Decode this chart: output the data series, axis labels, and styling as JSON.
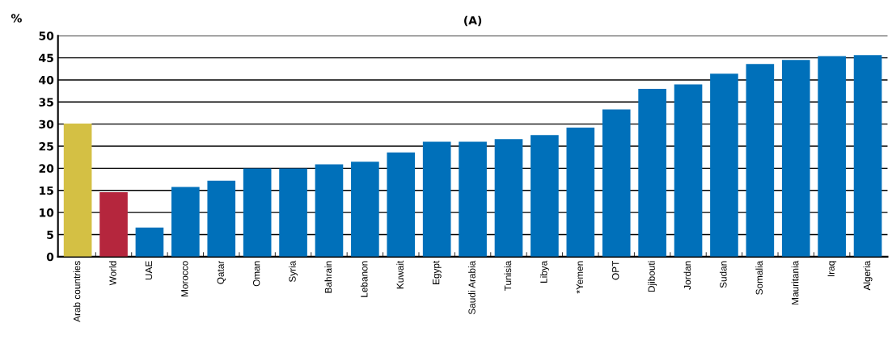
{
  "chart_data": {
    "type": "bar",
    "title": "(A)",
    "ylabel": "%",
    "categories": [
      "Arab countries",
      "World",
      "UAE",
      "Morocco",
      "Qatar",
      "Oman",
      "Syria",
      "Bahrain",
      "Lebanon",
      "Kuwait",
      "Egypt",
      "Saudi Arabia",
      "Tunisia",
      "Libya",
      "*Yemen",
      "OPT",
      "Djibouti",
      "Jordan",
      "Sudan",
      "Somalia",
      "Mauritania",
      "Iraq",
      "Algeria"
    ],
    "values": [
      30.1,
      14.6,
      6.6,
      15.8,
      17.2,
      20.0,
      20.0,
      20.9,
      21.5,
      23.6,
      26.0,
      26.0,
      26.6,
      27.5,
      29.2,
      33.3,
      38.0,
      39.0,
      41.4,
      43.6,
      44.5,
      45.4,
      45.6
    ],
    "colors": [
      "#d4c044",
      "#b5263d",
      "#0070ba",
      "#0070ba",
      "#0070ba",
      "#0070ba",
      "#0070ba",
      "#0070ba",
      "#0070ba",
      "#0070ba",
      "#0070ba",
      "#0070ba",
      "#0070ba",
      "#0070ba",
      "#0070ba",
      "#0070ba",
      "#0070ba",
      "#0070ba",
      "#0070ba",
      "#0070ba",
      "#0070ba",
      "#0070ba",
      "#0070ba"
    ],
    "ylim": [
      0,
      50
    ],
    "yticks": [
      0,
      5,
      10,
      15,
      20,
      25,
      30,
      35,
      40,
      45,
      50
    ],
    "grid": "y"
  }
}
